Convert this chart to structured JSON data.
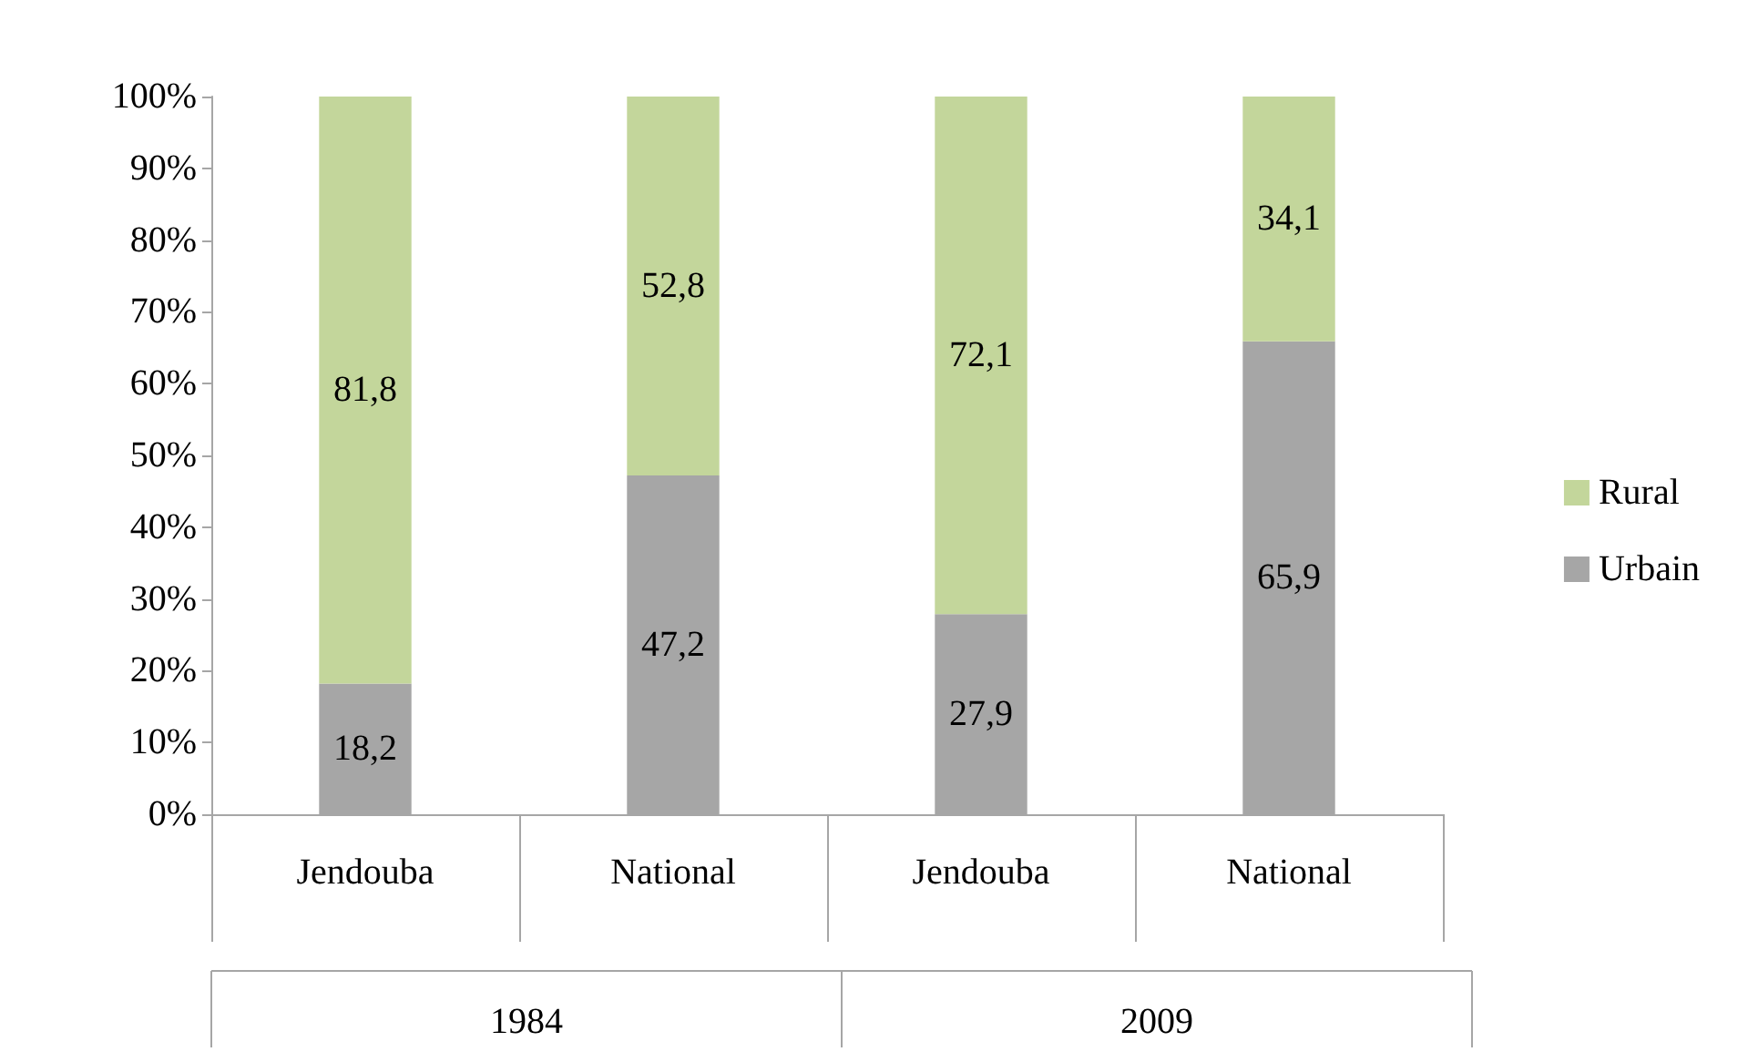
{
  "chart_data": {
    "type": "bar",
    "stacked": true,
    "categories": [
      "Jendouba",
      "National",
      "Jendouba",
      "National"
    ],
    "series": [
      {
        "name": "Urbain",
        "color": "#a6a6a6",
        "values": [
          18.2,
          47.2,
          27.9,
          65.9
        ],
        "value_labels": [
          "18,2",
          "47,2",
          "27,9",
          "65,9"
        ]
      },
      {
        "name": "Rural",
        "color": "#c3d69b",
        "values": [
          81.8,
          52.8,
          72.1,
          34.1
        ],
        "value_labels": [
          "81,8",
          "52,8",
          "72,1",
          "34,1"
        ]
      }
    ],
    "ylim": [
      0,
      100
    ],
    "yticks": [
      {
        "value": 0,
        "label": "0%"
      },
      {
        "value": 10,
        "label": "10%"
      },
      {
        "value": 20,
        "label": "20%"
      },
      {
        "value": 30,
        "label": "30%"
      },
      {
        "value": 40,
        "label": "40%"
      },
      {
        "value": 50,
        "label": "50%"
      },
      {
        "value": 60,
        "label": "60%"
      },
      {
        "value": 70,
        "label": "70%"
      },
      {
        "value": 80,
        "label": "80%"
      },
      {
        "value": 90,
        "label": "90%"
      },
      {
        "value": 100,
        "label": "100%"
      }
    ],
    "annotations": [
      "1984",
      "2009"
    ],
    "grid": false,
    "legend": "right"
  }
}
